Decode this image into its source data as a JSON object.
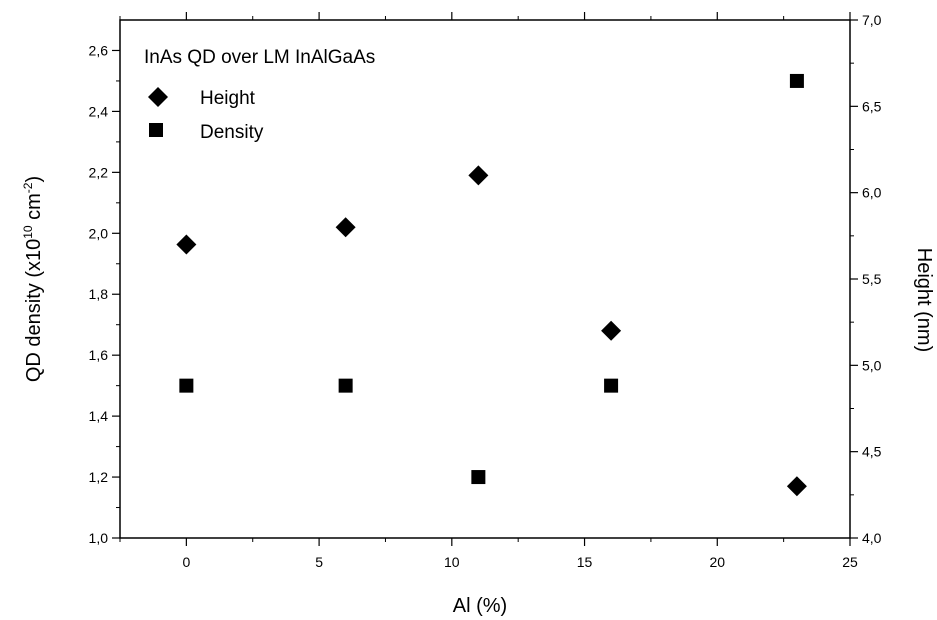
{
  "chart_data": {
    "type": "scatter",
    "title": "",
    "legend_title": "InAs QD over LM InAlGaAs",
    "legend_placement": "top-left",
    "grid": false,
    "xlabel": "Al (%)",
    "ylabel_left": {
      "base": "QD density (x10",
      "exp1": "10",
      "mid": " cm",
      "exp2": "-2",
      "end": ")"
    },
    "ylabel_right": "Height (nm)",
    "xlim": [
      -2.5,
      25
    ],
    "xticks": [
      0,
      5,
      10,
      15,
      20,
      25
    ],
    "xtick_labels": [
      "0",
      "5",
      "10",
      "15",
      "20",
      "25"
    ],
    "ylim_left": [
      1.0,
      2.7
    ],
    "yticks_left": [
      1.0,
      1.2,
      1.4,
      1.6,
      1.8,
      2.0,
      2.2,
      2.4,
      2.6
    ],
    "ytick_labels_left": [
      "1,0",
      "1,2",
      "1,4",
      "1,6",
      "1,8",
      "2,0",
      "2,2",
      "2,4",
      "2,6"
    ],
    "ylim_right": [
      4.0,
      7.0
    ],
    "yticks_right": [
      4.0,
      4.5,
      5.0,
      5.5,
      6.0,
      6.5,
      7.0
    ],
    "ytick_labels_right": [
      "4,0",
      "4,5",
      "5,0",
      "5,5",
      "6,0",
      "6,5",
      "7,0"
    ],
    "series": [
      {
        "name": "Height",
        "marker": "diamond",
        "axis": "right",
        "x": [
          0,
          6,
          11,
          16,
          23
        ],
        "y": [
          5.7,
          5.8,
          6.1,
          5.2,
          4.3
        ]
      },
      {
        "name": "Density",
        "marker": "square",
        "axis": "left",
        "x": [
          0,
          6,
          11,
          16,
          23
        ],
        "y": [
          1.5,
          1.5,
          1.2,
          1.5,
          2.5
        ]
      }
    ]
  }
}
